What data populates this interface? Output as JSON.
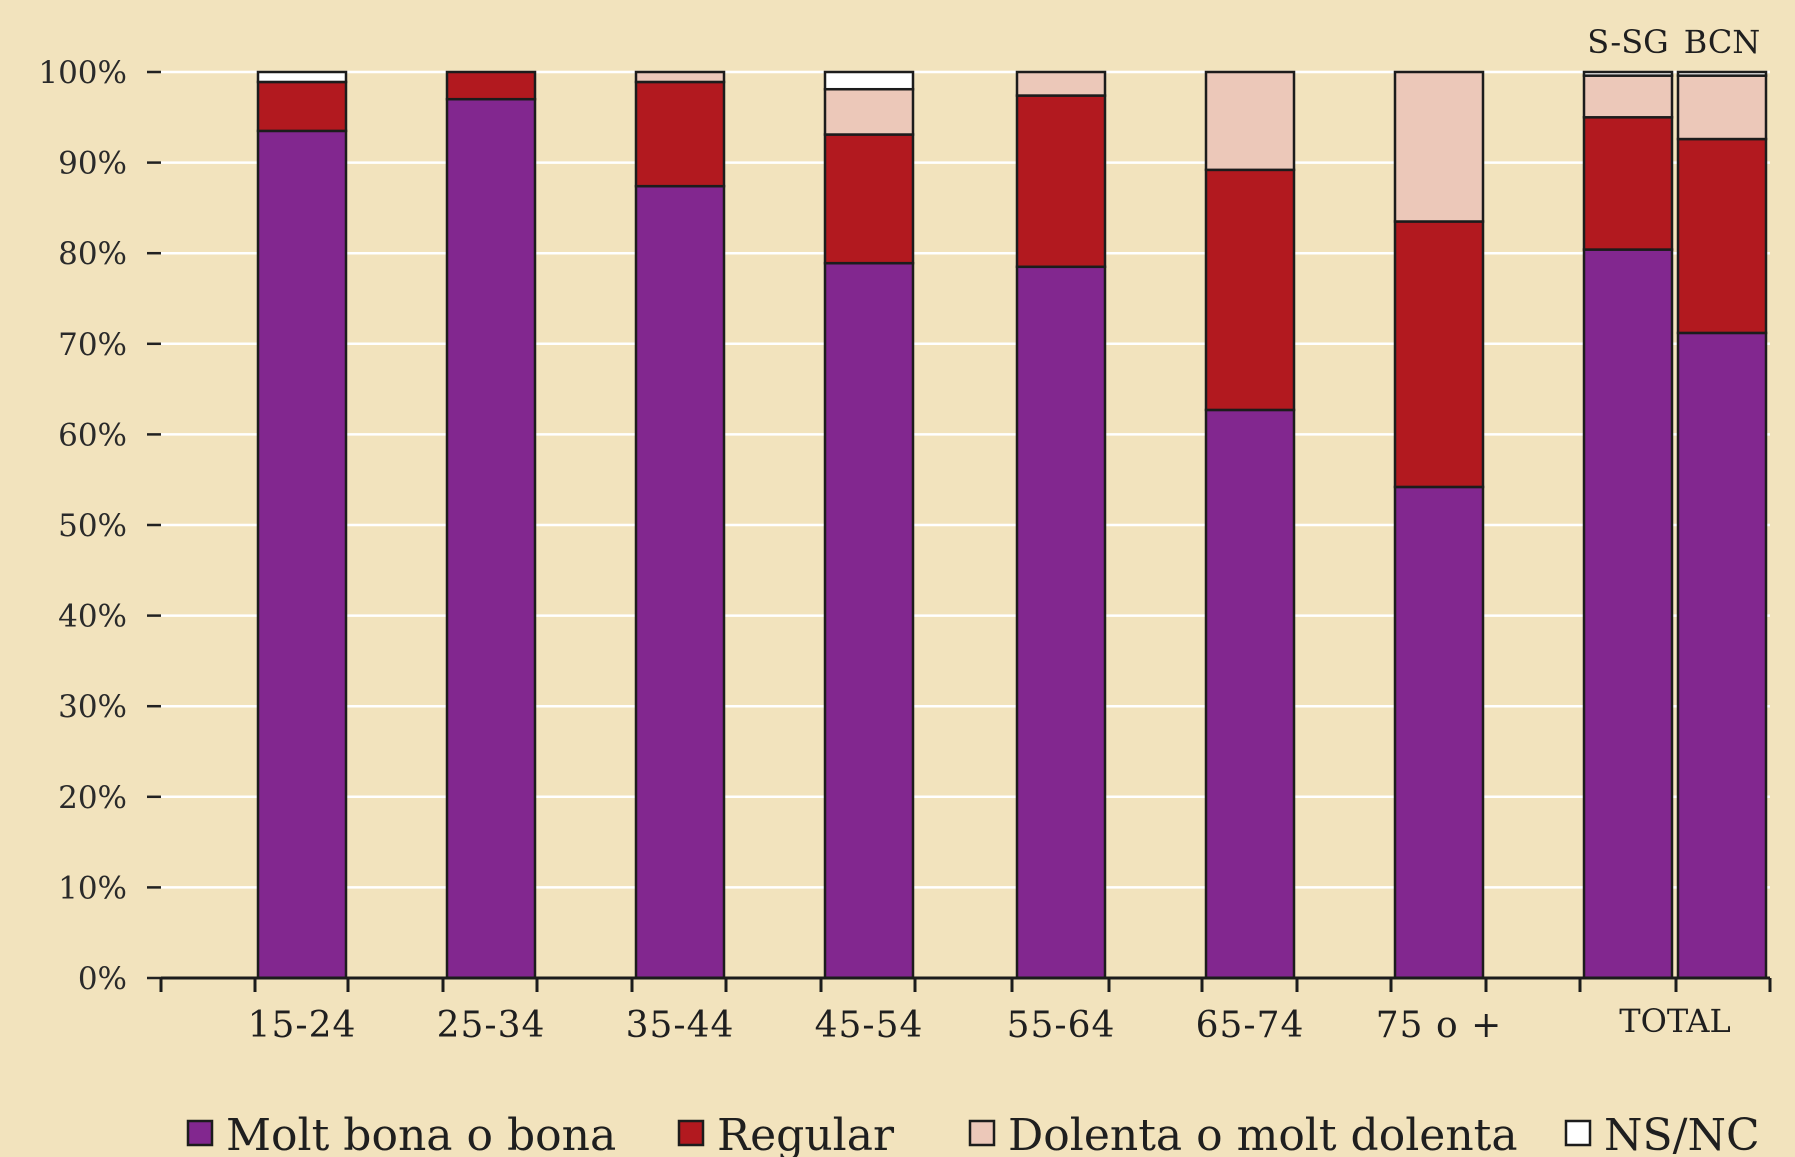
{
  "chart_data": {
    "type": "bar",
    "stacked": true,
    "categories": [
      "15-24",
      "25-34",
      "35-44",
      "45-54",
      "55-64",
      "65-74",
      "75 o +",
      "S-SG",
      "BCN"
    ],
    "axis_labels": [
      "15-24",
      "25-34",
      "35-44",
      "45-54",
      "55-64",
      "65-74",
      "75 o +",
      "TOTAL"
    ],
    "group_label": "TOTAL",
    "top_labels": [
      "S-SG",
      "BCN"
    ],
    "series": [
      {
        "name": "Molt bona o bona",
        "color": "#82278f",
        "values": [
          93.5,
          97.0,
          87.4,
          78.9,
          78.5,
          62.7,
          54.2,
          80.4,
          71.2
        ]
      },
      {
        "name": "Regular",
        "color": "#b2191f",
        "values": [
          5.4,
          3.0,
          11.5,
          14.2,
          18.9,
          26.5,
          29.3,
          14.6,
          21.4
        ]
      },
      {
        "name": "Dolenta o molt dolenta",
        "color": "#ecc8b9",
        "values": [
          0.0,
          0.0,
          1.1,
          5.0,
          2.6,
          10.8,
          16.5,
          4.6,
          7.0
        ]
      },
      {
        "name": "NS/NC",
        "color": "#ffffff",
        "values": [
          1.1,
          0.0,
          0.0,
          1.9,
          0.0,
          0.0,
          0.0,
          0.4,
          0.4
        ]
      }
    ],
    "yticks": [
      "0%",
      "10%",
      "20%",
      "30%",
      "40%",
      "50%",
      "60%",
      "70%",
      "80%",
      "90%",
      "100%"
    ],
    "ylim": [
      0,
      100
    ],
    "grid": true,
    "legend_position": "bottom",
    "title": "",
    "xlabel": "",
    "ylabel": ""
  }
}
